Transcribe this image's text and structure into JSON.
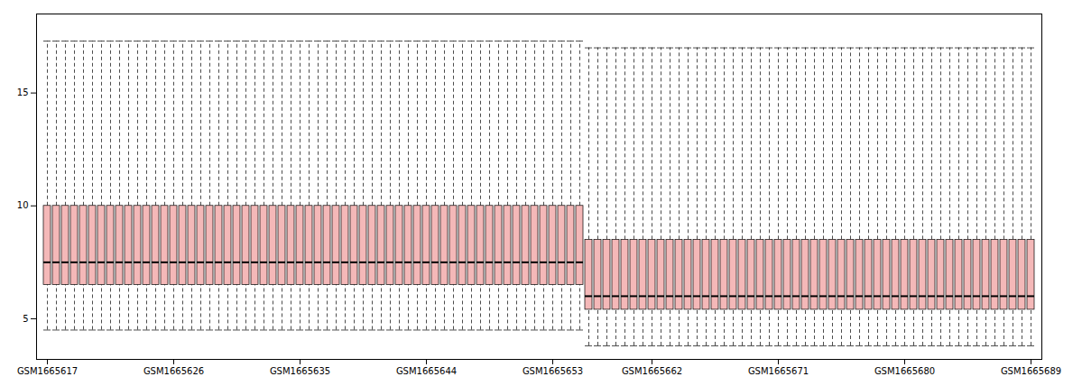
{
  "chart_data": {
    "type": "boxplot",
    "categories": [
      "GSM1665617",
      null,
      null,
      null,
      null,
      null,
      null,
      null,
      null,
      null,
      null,
      null,
      null,
      null,
      "GSM1665626",
      null,
      null,
      null,
      null,
      null,
      null,
      null,
      null,
      null,
      null,
      null,
      null,
      null,
      "GSM1665635",
      null,
      null,
      null,
      null,
      null,
      null,
      null,
      null,
      null,
      null,
      null,
      null,
      null,
      "GSM1665644",
      null,
      null,
      null,
      null,
      null,
      null,
      null,
      null,
      null,
      null,
      null,
      null,
      null,
      "GSM1665653",
      null,
      null,
      null,
      null,
      null,
      null,
      null,
      null,
      null,
      null,
      "GSM1665662",
      null,
      null,
      null,
      null,
      null,
      null,
      null,
      null,
      null,
      null,
      null,
      null,
      null,
      "GSM1665671",
      null,
      null,
      null,
      null,
      null,
      null,
      null,
      null,
      null,
      null,
      null,
      null,
      null,
      "GSM1665680",
      null,
      null,
      null,
      null,
      null,
      null,
      null,
      null,
      null,
      null,
      null,
      null,
      null,
      "GSM1665689"
    ],
    "whislo": [
      4.5,
      4.5,
      4.5,
      4.5,
      4.5,
      4.5,
      4.5,
      4.5,
      4.5,
      4.5,
      4.5,
      4.5,
      4.5,
      4.5,
      4.5,
      4.5,
      4.5,
      4.5,
      4.5,
      4.5,
      4.5,
      4.5,
      4.5,
      4.5,
      4.5,
      4.5,
      4.5,
      4.5,
      4.5,
      4.5,
      4.5,
      4.5,
      4.5,
      4.5,
      4.5,
      4.5,
      4.5,
      4.5,
      4.5,
      4.5,
      4.5,
      4.5,
      4.5,
      4.5,
      4.5,
      4.5,
      4.5,
      4.5,
      4.5,
      4.5,
      4.5,
      4.5,
      4.5,
      4.5,
      4.5,
      4.5,
      4.5,
      4.5,
      4.5,
      4.5,
      3.8,
      3.8,
      3.8,
      3.8,
      3.8,
      3.8,
      3.8,
      3.8,
      3.8,
      3.8,
      3.8,
      3.8,
      3.8,
      3.8,
      3.8,
      3.8,
      3.8,
      3.8,
      3.8,
      3.8,
      3.8,
      3.8,
      3.8,
      3.8,
      3.8,
      3.8,
      3.8,
      3.8,
      3.8,
      3.8,
      3.8,
      3.8,
      3.8,
      3.8,
      3.8,
      3.8,
      3.8,
      3.8,
      3.8,
      3.8,
      3.8,
      3.8,
      3.8,
      3.8,
      3.8,
      3.8,
      3.8,
      3.8,
      3.8,
      3.8
    ],
    "q1": [
      6.5,
      6.5,
      6.5,
      6.5,
      6.5,
      6.5,
      6.5,
      6.5,
      6.5,
      6.5,
      6.5,
      6.5,
      6.5,
      6.5,
      6.5,
      6.5,
      6.5,
      6.5,
      6.5,
      6.5,
      6.5,
      6.5,
      6.5,
      6.5,
      6.5,
      6.5,
      6.5,
      6.5,
      6.5,
      6.5,
      6.5,
      6.5,
      6.5,
      6.5,
      6.5,
      6.5,
      6.5,
      6.5,
      6.5,
      6.5,
      6.5,
      6.5,
      6.5,
      6.5,
      6.5,
      6.5,
      6.5,
      6.5,
      6.5,
      6.5,
      6.5,
      6.5,
      6.5,
      6.5,
      6.5,
      6.5,
      6.5,
      6.5,
      6.5,
      6.5,
      5.4,
      5.4,
      5.4,
      5.4,
      5.4,
      5.4,
      5.4,
      5.4,
      5.4,
      5.4,
      5.4,
      5.4,
      5.4,
      5.4,
      5.4,
      5.4,
      5.4,
      5.4,
      5.4,
      5.4,
      5.4,
      5.4,
      5.4,
      5.4,
      5.4,
      5.4,
      5.4,
      5.4,
      5.4,
      5.4,
      5.4,
      5.4,
      5.4,
      5.4,
      5.4,
      5.4,
      5.4,
      5.4,
      5.4,
      5.4,
      5.4,
      5.4,
      5.4,
      5.4,
      5.4,
      5.4,
      5.4,
      5.4,
      5.4,
      5.4
    ],
    "med": [
      7.5,
      7.5,
      7.5,
      7.5,
      7.5,
      7.5,
      7.5,
      7.5,
      7.5,
      7.5,
      7.5,
      7.5,
      7.5,
      7.5,
      7.5,
      7.5,
      7.5,
      7.5,
      7.5,
      7.5,
      7.5,
      7.5,
      7.5,
      7.5,
      7.5,
      7.5,
      7.5,
      7.5,
      7.5,
      7.5,
      7.5,
      7.5,
      7.5,
      7.5,
      7.5,
      7.5,
      7.5,
      7.5,
      7.5,
      7.5,
      7.5,
      7.5,
      7.5,
      7.5,
      7.5,
      7.5,
      7.5,
      7.5,
      7.5,
      7.5,
      7.5,
      7.5,
      7.5,
      7.5,
      7.5,
      7.5,
      7.5,
      7.5,
      7.5,
      7.5,
      6.0,
      6.0,
      6.0,
      6.0,
      6.0,
      6.0,
      6.0,
      6.0,
      6.0,
      6.0,
      6.0,
      6.0,
      6.0,
      6.0,
      6.0,
      6.0,
      6.0,
      6.0,
      6.0,
      6.0,
      6.0,
      6.0,
      6.0,
      6.0,
      6.0,
      6.0,
      6.0,
      6.0,
      6.0,
      6.0,
      6.0,
      6.0,
      6.0,
      6.0,
      6.0,
      6.0,
      6.0,
      6.0,
      6.0,
      6.0,
      6.0,
      6.0,
      6.0,
      6.0,
      6.0,
      6.0,
      6.0,
      6.0,
      6.0,
      6.0
    ],
    "q3": [
      10.0,
      10.0,
      10.0,
      10.0,
      10.0,
      10.0,
      10.0,
      10.0,
      10.0,
      10.0,
      10.0,
      10.0,
      10.0,
      10.0,
      10.0,
      10.0,
      10.0,
      10.0,
      10.0,
      10.0,
      10.0,
      10.0,
      10.0,
      10.0,
      10.0,
      10.0,
      10.0,
      10.0,
      10.0,
      10.0,
      10.0,
      10.0,
      10.0,
      10.0,
      10.0,
      10.0,
      10.0,
      10.0,
      10.0,
      10.0,
      10.0,
      10.0,
      10.0,
      10.0,
      10.0,
      10.0,
      10.0,
      10.0,
      10.0,
      10.0,
      10.0,
      10.0,
      10.0,
      10.0,
      10.0,
      10.0,
      10.0,
      10.0,
      10.0,
      10.0,
      8.5,
      8.5,
      8.5,
      8.5,
      8.5,
      8.5,
      8.5,
      8.5,
      8.5,
      8.5,
      8.5,
      8.5,
      8.5,
      8.5,
      8.5,
      8.5,
      8.5,
      8.5,
      8.5,
      8.5,
      8.5,
      8.5,
      8.5,
      8.5,
      8.5,
      8.5,
      8.5,
      8.5,
      8.5,
      8.5,
      8.5,
      8.5,
      8.5,
      8.5,
      8.5,
      8.5,
      8.5,
      8.5,
      8.5,
      8.5,
      8.5,
      8.5,
      8.5,
      8.5,
      8.5,
      8.5,
      8.5,
      8.5,
      8.5,
      8.5
    ],
    "whishi": [
      17.3,
      17.3,
      17.3,
      17.3,
      17.3,
      17.3,
      17.3,
      17.3,
      17.3,
      17.3,
      17.3,
      17.3,
      17.3,
      17.3,
      17.3,
      17.3,
      17.3,
      17.3,
      17.3,
      17.3,
      17.3,
      17.3,
      17.3,
      17.3,
      17.3,
      17.3,
      17.3,
      17.3,
      17.3,
      17.3,
      17.3,
      17.3,
      17.3,
      17.3,
      17.3,
      17.3,
      17.3,
      17.3,
      17.3,
      17.3,
      17.3,
      17.3,
      17.3,
      17.3,
      17.3,
      17.3,
      17.3,
      17.3,
      17.3,
      17.3,
      17.3,
      17.3,
      17.3,
      17.3,
      17.3,
      17.3,
      17.3,
      17.3,
      17.3,
      17.3,
      17.0,
      17.0,
      17.0,
      17.0,
      17.0,
      17.0,
      17.0,
      17.0,
      17.0,
      17.0,
      17.0,
      17.0,
      17.0,
      17.0,
      17.0,
      17.0,
      17.0,
      17.0,
      17.0,
      17.0,
      17.0,
      17.0,
      17.0,
      17.0,
      17.0,
      17.0,
      17.0,
      17.0,
      17.0,
      17.0,
      17.0,
      17.0,
      17.0,
      17.0,
      17.0,
      17.0,
      17.0,
      17.0,
      17.0,
      17.0,
      17.0,
      17.0,
      17.0,
      17.0,
      17.0,
      17.0,
      17.0,
      17.0,
      17.0,
      17.0
    ],
    "color": "#f4b8b8",
    "line_style": "dashed",
    "ylim": [
      3.2,
      18.5
    ],
    "yticks": [
      5,
      10,
      15
    ]
  }
}
